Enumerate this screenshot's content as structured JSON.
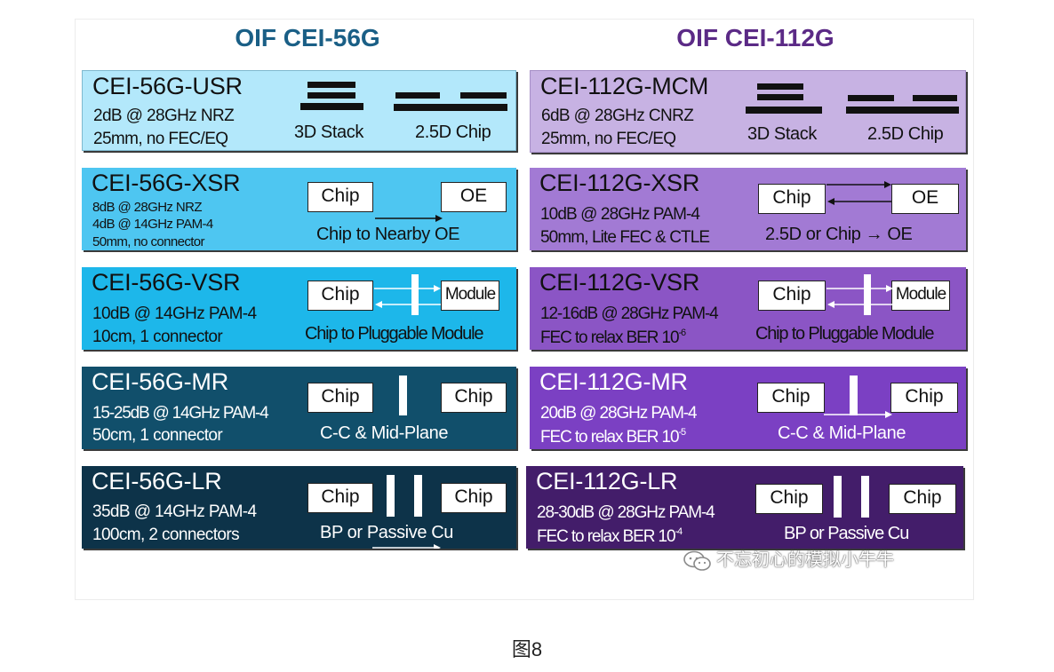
{
  "titles": {
    "left": "OIF CEI-56G",
    "right": "OIF CEI-112G"
  },
  "colors": {
    "title_left": "#1a5f86",
    "title_right": "#5b2a86",
    "left_panels": [
      "#b3e8fb",
      "#4ec6f1",
      "#1db7ea",
      "#114f6b",
      "#0d3349"
    ],
    "right_panels": [
      "#c7b2e3",
      "#a27ad4",
      "#8b55c5",
      "#7b40c3",
      "#431d6a"
    ]
  },
  "left": {
    "usr": {
      "name": "CEI-56G-USR",
      "line1": "2dB @ 28GHz NRZ",
      "line2": "25mm, no FEC/EQ",
      "label_a": "3D Stack",
      "label_b": "2.5D Chip"
    },
    "xsr": {
      "name": "CEI-56G-XSR",
      "line1": "8dB @ 28GHz NRZ",
      "line2": "4dB @ 14GHz PAM-4",
      "line3": "50mm, no connector",
      "box_a": "Chip",
      "box_b": "OE",
      "caption": "Chip to Nearby OE"
    },
    "vsr": {
      "name": "CEI-56G-VSR",
      "line1": "10dB @ 14GHz PAM-4",
      "line2": "10cm, 1 connector",
      "box_a": "Chip",
      "box_b": "Module",
      "caption": "Chip to Pluggable Module"
    },
    "mr": {
      "name": "CEI-56G-MR",
      "line1": "15-25dB @ 14GHz PAM-4",
      "line2": "50cm, 1 connector",
      "box_a": "Chip",
      "box_b": "Chip",
      "caption": "C-C & Mid-Plane"
    },
    "lr": {
      "name": "CEI-56G-LR",
      "line1": "35dB @ 14GHz PAM-4",
      "line2": "100cm, 2 connectors",
      "box_a": "Chip",
      "box_b": "Chip",
      "caption": "BP or Passive Cu"
    }
  },
  "right": {
    "mcm": {
      "name": "CEI-112G-MCM",
      "line1": "6dB @ 28GHz CNRZ",
      "line2": "25mm, no FEC/EQ",
      "label_a": "3D Stack",
      "label_b": "2.5D Chip"
    },
    "xsr": {
      "name": "CEI-112G-XSR",
      "line1": "10dB @ 28GHz PAM-4",
      "line2": "50mm, Lite FEC & CTLE",
      "box_a": "Chip",
      "box_b": "OE",
      "caption": "2.5D or Chip → OE"
    },
    "vsr": {
      "name": "CEI-112G-VSR",
      "line1": "12-16dB @ 28GHz PAM-4",
      "line2": "FEC to relax BER 10",
      "line2_sup": "-6",
      "box_a": "Chip",
      "box_b": "Module",
      "caption": "Chip to Pluggable Module"
    },
    "mr": {
      "name": "CEI-112G-MR",
      "line1": "20dB @ 28GHz PAM-4",
      "line2": "FEC to relax BER 10",
      "line2_sup": "-5",
      "box_a": "Chip",
      "box_b": "Chip",
      "caption": "C-C & Mid-Plane"
    },
    "lr": {
      "name": "CEI-112G-LR",
      "line1": "28-30dB @ 28GHz PAM-4",
      "line2": "FEC to relax BER 10",
      "line2_sup": "-4",
      "box_a": "Chip",
      "box_b": "Chip",
      "caption": "BP or Passive Cu"
    }
  },
  "watermark": "不忘初心的模拟小牛牛",
  "figure_caption": "图8"
}
